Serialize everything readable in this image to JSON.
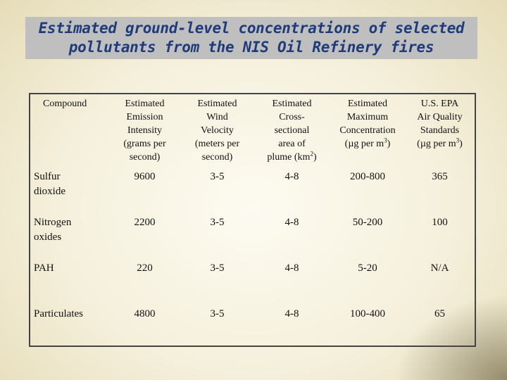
{
  "title": {
    "line1": "Estimated ground-level concentrations of selected",
    "line2": "pollutants from the NIS Oil Refinery fires"
  },
  "table": {
    "headers": [
      {
        "lines": [
          "Compound"
        ]
      },
      {
        "lines": [
          "Estimated",
          "Emission",
          "Intensity",
          "(grams per",
          "second)"
        ]
      },
      {
        "lines": [
          "Estimated",
          "Wind",
          "Velocity",
          "(meters per",
          "second)"
        ]
      },
      {
        "lines": [
          "Estimated",
          "Cross-",
          "sectional",
          "area of",
          "plume (km",
          ")"
        ],
        "sup": "2"
      },
      {
        "lines": [
          "Estimated",
          "Maximum",
          "Concentration",
          "(µg per m",
          ")"
        ],
        "sup": "3"
      },
      {
        "lines": [
          "U.S. EPA",
          "Air Quality",
          "Standards",
          "(µg per m",
          ")"
        ],
        "sup": "3"
      }
    ],
    "rows": [
      {
        "compound": [
          "Sulfur",
          "dioxide"
        ],
        "emission": "9600",
        "wind": "3-5",
        "area": "4-8",
        "concentration": "200-800",
        "standard": "365"
      },
      {
        "compound": [
          "Nitrogen",
          "oxides"
        ],
        "emission": "2200",
        "wind": "3-5",
        "area": "4-8",
        "concentration": "50-200",
        "standard": "100"
      },
      {
        "compound": [
          "PAH"
        ],
        "emission": "220",
        "wind": "3-5",
        "area": "4-8",
        "concentration": "5-20",
        "standard": "N/A"
      },
      {
        "compound": [
          "Particulates"
        ],
        "emission": "4800",
        "wind": "3-5",
        "area": "4-8",
        "concentration": "100-400",
        "standard": "65"
      }
    ]
  }
}
